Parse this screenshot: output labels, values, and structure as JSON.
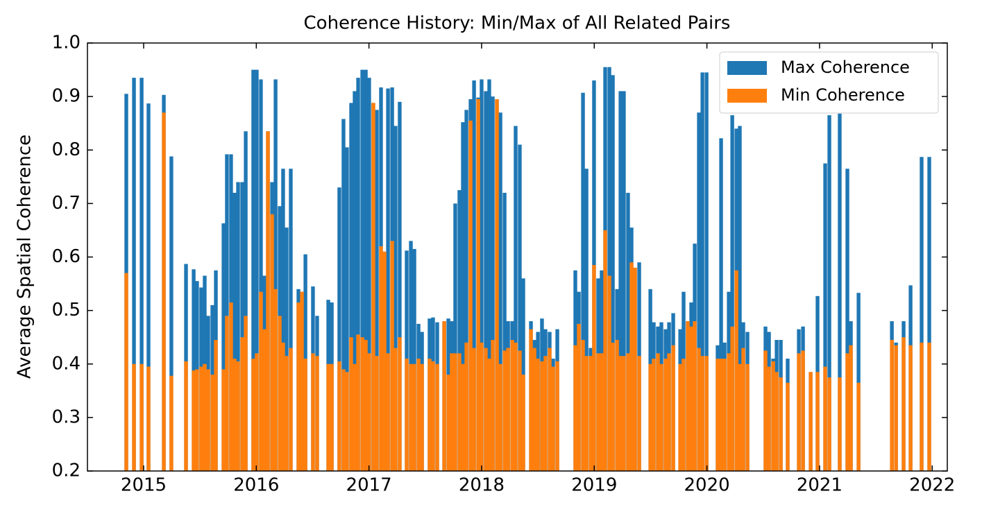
{
  "chart_data": {
    "type": "bar",
    "title": "Coherence History: Min/Max of All Related Pairs",
    "y_label": "Average Spatial Coherence",
    "x": [
      2014.846,
      2014.914,
      2014.982,
      2015.043,
      2015.179,
      2015.246,
      2015.376,
      2015.444,
      2015.474,
      2015.511,
      2015.542,
      2015.573,
      2015.61,
      2015.641,
      2015.709,
      2015.739,
      2015.776,
      2015.807,
      2015.838,
      2015.875,
      2015.906,
      2015.973,
      2016.004,
      2016.041,
      2016.072,
      2016.103,
      2016.14,
      2016.171,
      2016.208,
      2016.238,
      2016.269,
      2016.306,
      2016.374,
      2016.405,
      2016.436,
      2016.503,
      2016.54,
      2016.639,
      2016.67,
      2016.737,
      2016.774,
      2016.805,
      2016.842,
      2016.873,
      2016.904,
      2016.941,
      2016.972,
      2017.002,
      2017.039,
      2017.07,
      2017.107,
      2017.138,
      2017.169,
      2017.206,
      2017.236,
      2017.273,
      2017.335,
      2017.372,
      2017.403,
      2017.44,
      2017.471,
      2017.538,
      2017.569,
      2017.606,
      2017.668,
      2017.705,
      2017.735,
      2017.766,
      2017.803,
      2017.834,
      2017.865,
      2017.902,
      2017.933,
      2017.97,
      2018.0,
      2018.037,
      2018.068,
      2018.099,
      2018.136,
      2018.167,
      2018.204,
      2018.235,
      2018.272,
      2018.302,
      2018.339,
      2018.37,
      2018.438,
      2018.469,
      2018.5,
      2018.536,
      2018.567,
      2018.604,
      2018.635,
      2018.672,
      2018.832,
      2018.863,
      2018.9,
      2018.931,
      2018.968,
      2018.998,
      2019.035,
      2019.066,
      2019.097,
      2019.134,
      2019.165,
      2019.202,
      2019.233,
      2019.263,
      2019.3,
      2019.331,
      2019.362,
      2019.399,
      2019.498,
      2019.528,
      2019.565,
      2019.596,
      2019.633,
      2019.664,
      2019.701,
      2019.763,
      2019.793,
      2019.83,
      2019.861,
      2019.892,
      2019.929,
      2019.96,
      2019.997,
      2020.095,
      2020.126,
      2020.157,
      2020.194,
      2020.225,
      2020.262,
      2020.292,
      2020.323,
      2020.36,
      2020.52,
      2020.551,
      2020.588,
      2020.619,
      2020.656,
      2020.717,
      2020.816,
      2020.853,
      2020.921,
      2020.982,
      2021.05,
      2021.087,
      2021.179,
      2021.247,
      2021.278,
      2021.346,
      2021.642,
      2021.679,
      2021.746,
      2021.808,
      2021.906,
      2021.974
    ],
    "series": [
      {
        "name": "Max Coherence",
        "color": "#1f77b4",
        "values": [
          0.905,
          0.935,
          0.935,
          0.887,
          0.903,
          0.788,
          0.587,
          0.577,
          0.555,
          0.543,
          0.565,
          0.49,
          0.51,
          0.575,
          0.663,
          0.792,
          0.792,
          0.72,
          0.74,
          0.74,
          0.835,
          0.95,
          0.95,
          0.932,
          0.565,
          0.835,
          0.74,
          0.932,
          0.695,
          0.765,
          0.655,
          0.765,
          0.54,
          0.535,
          0.605,
          0.545,
          0.49,
          0.52,
          0.515,
          0.73,
          0.858,
          0.805,
          0.888,
          0.91,
          0.935,
          0.95,
          0.95,
          0.935,
          0.888,
          0.875,
          0.917,
          0.61,
          0.915,
          0.917,
          0.845,
          0.89,
          0.612,
          0.63,
          0.615,
          0.475,
          0.46,
          0.485,
          0.487,
          0.478,
          0.48,
          0.485,
          0.48,
          0.7,
          0.725,
          0.852,
          0.875,
          0.895,
          0.93,
          0.898,
          0.932,
          0.91,
          0.932,
          0.9,
          0.895,
          0.87,
          0.72,
          0.48,
          0.48,
          0.845,
          0.81,
          0.56,
          0.48,
          0.445,
          0.46,
          0.485,
          0.465,
          0.46,
          0.41,
          0.465,
          0.575,
          0.535,
          0.907,
          0.765,
          0.43,
          0.93,
          0.56,
          0.575,
          0.955,
          0.955,
          0.94,
          0.54,
          0.91,
          0.91,
          0.72,
          0.655,
          0.58,
          0.59,
          0.54,
          0.478,
          0.47,
          0.478,
          0.465,
          0.478,
          0.495,
          0.465,
          0.535,
          0.48,
          0.515,
          0.625,
          0.87,
          0.945,
          0.945,
          0.435,
          0.822,
          0.44,
          0.535,
          0.865,
          0.84,
          0.845,
          0.478,
          0.46,
          0.47,
          0.46,
          0.41,
          0.445,
          0.445,
          0.41,
          0.465,
          0.47,
          0.385,
          0.527,
          0.775,
          0.865,
          0.868,
          0.765,
          0.48,
          0.533,
          0.48,
          0.44,
          0.48,
          0.547,
          0.787,
          0.787
        ]
      },
      {
        "name": "Min Coherence",
        "color": "#ff7f0e",
        "values": [
          0.57,
          0.4,
          0.4,
          0.395,
          0.87,
          0.378,
          0.405,
          0.388,
          0.39,
          0.395,
          0.4,
          0.39,
          0.38,
          0.445,
          0.39,
          0.49,
          0.515,
          0.41,
          0.405,
          0.45,
          0.49,
          0.41,
          0.42,
          0.535,
          0.465,
          0.835,
          0.68,
          0.54,
          0.49,
          0.44,
          0.415,
          0.43,
          0.515,
          0.535,
          0.41,
          0.42,
          0.415,
          0.4,
          0.4,
          0.405,
          0.39,
          0.385,
          0.45,
          0.4,
          0.455,
          0.45,
          0.445,
          0.42,
          0.888,
          0.415,
          0.62,
          0.61,
          0.42,
          0.63,
          0.43,
          0.45,
          0.41,
          0.4,
          0.4,
          0.41,
          0.4,
          0.41,
          0.405,
          0.4,
          0.48,
          0.38,
          0.42,
          0.42,
          0.42,
          0.4,
          0.44,
          0.855,
          0.43,
          0.895,
          0.44,
          0.43,
          0.41,
          0.445,
          0.895,
          0.4,
          0.425,
          0.43,
          0.445,
          0.44,
          0.425,
          0.38,
          0.465,
          0.43,
          0.41,
          0.405,
          0.415,
          0.43,
          0.395,
          0.405,
          0.435,
          0.475,
          0.445,
          0.415,
          0.415,
          0.585,
          0.42,
          0.42,
          0.65,
          0.565,
          0.44,
          0.445,
          0.415,
          0.415,
          0.42,
          0.59,
          0.58,
          0.415,
          0.4,
          0.41,
          0.42,
          0.4,
          0.41,
          0.42,
          0.435,
          0.4,
          0.41,
          0.48,
          0.47,
          0.48,
          0.43,
          0.415,
          0.415,
          0.41,
          0.41,
          0.41,
          0.42,
          0.47,
          0.575,
          0.4,
          0.43,
          0.4,
          0.425,
          0.395,
          0.405,
          0.385,
          0.375,
          0.365,
          0.42,
          0.425,
          0.385,
          0.385,
          0.395,
          0.375,
          0.375,
          0.42,
          0.435,
          0.365,
          0.445,
          0.435,
          0.45,
          0.435,
          0.44,
          0.44
        ]
      }
    ],
    "xlim": [
      2014.501,
      2022.134
    ],
    "xticks": [
      2015,
      2016,
      2017,
      2018,
      2019,
      2020,
      2021,
      2022
    ],
    "ylim": [
      0.2,
      1.0
    ],
    "yticks": [
      0.2,
      0.3,
      0.4,
      0.5,
      0.6,
      0.7,
      0.8,
      0.9,
      {
        "value": 1.0,
        "label": "1.0"
      }
    ],
    "legend": "upper right"
  }
}
